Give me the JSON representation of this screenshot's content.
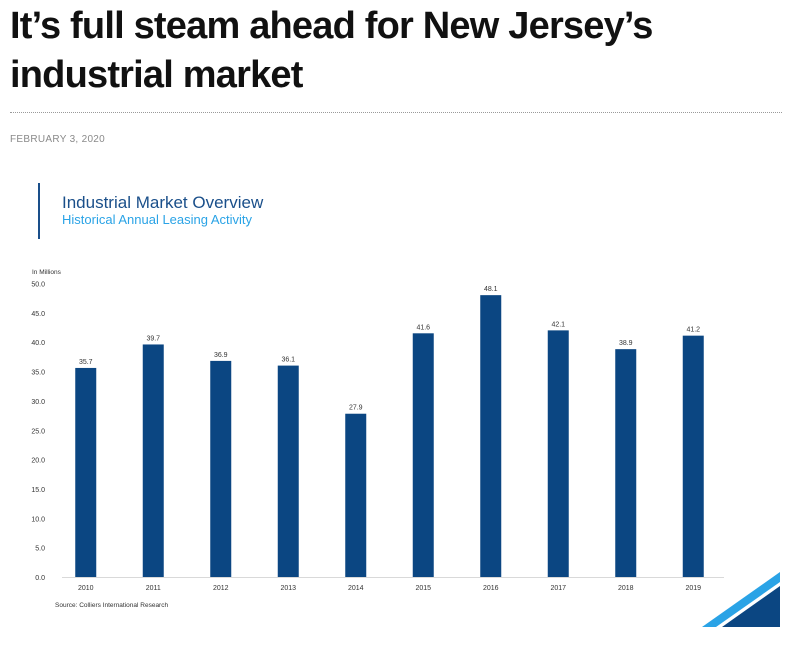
{
  "article": {
    "title": "It’s full steam ahead for New Jersey’s industrial market",
    "date": "FEBRUARY 3, 2020"
  },
  "colors": {
    "bar": "#0b4682",
    "title_blue": "#1a4f8a",
    "subtitle_blue": "#2aa3e6",
    "accent_dark": "#0b4682",
    "accent_light": "#2aa3e6"
  },
  "chart_data": {
    "type": "bar",
    "title": "Industrial Market Overview",
    "subtitle": "Historical Annual Leasing Activity",
    "ylabel": "In Millions",
    "xlabel": "",
    "categories": [
      "2010",
      "2011",
      "2012",
      "2013",
      "2014",
      "2015",
      "2016",
      "2017",
      "2018",
      "2019"
    ],
    "values": [
      35.7,
      39.7,
      36.9,
      36.1,
      27.9,
      41.6,
      48.1,
      42.1,
      38.9,
      41.2
    ],
    "value_labels": [
      "35.7",
      "39.7",
      "36.9",
      "36.1",
      "27.9",
      "41.6",
      "48.1",
      "42.1",
      "38.9",
      "41.2"
    ],
    "ylim": [
      0,
      50
    ],
    "yticks": [
      "0.0",
      "5.0",
      "10.0",
      "15.0",
      "20.0",
      "25.0",
      "30.0",
      "35.0",
      "40.0",
      "45.0",
      "50.0"
    ],
    "grid": false,
    "source": "Source: Colliers International Research"
  }
}
